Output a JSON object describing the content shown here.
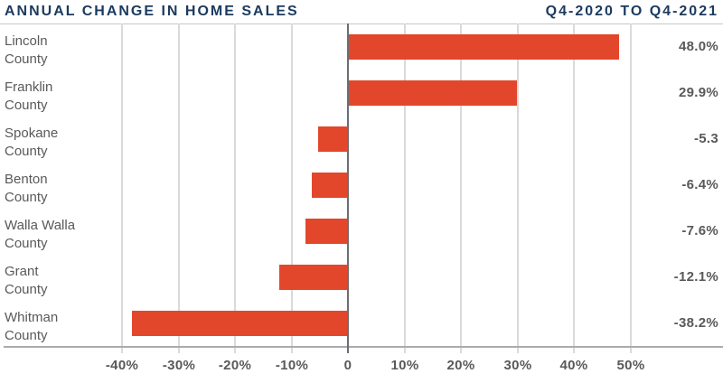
{
  "chart_data": {
    "type": "bar",
    "orientation": "horizontal",
    "title": "ANNUAL CHANGE IN HOME SALES",
    "period": "Q4-2020 TO Q4-2021",
    "categories": [
      "Lincoln County",
      "Franklin County",
      "Spokane County",
      "Benton County",
      "Walla Walla County",
      "Grant County",
      "Whitman County"
    ],
    "category_lines": [
      [
        "Lincoln",
        "County"
      ],
      [
        "Franklin",
        "County"
      ],
      [
        "Spokane",
        "County"
      ],
      [
        "Benton",
        "County"
      ],
      [
        "Walla Walla",
        "County"
      ],
      [
        "Grant",
        "County"
      ],
      [
        "Whitman",
        "County"
      ]
    ],
    "values": [
      48.0,
      29.9,
      -5.3,
      -6.4,
      -7.6,
      -12.1,
      -38.2
    ],
    "value_labels": [
      "48.0%",
      "29.9%",
      "-5.3",
      "-6.4%",
      "-7.6%",
      "-12.1%",
      "-38.2%"
    ],
    "x_ticks": [
      -40,
      -30,
      -20,
      -10,
      0,
      10,
      20,
      30,
      40,
      50
    ],
    "x_tick_labels": [
      "-40%",
      "-30%",
      "-20%",
      "-10%",
      "0",
      "10%",
      "20%",
      "30%",
      "40%",
      "50%"
    ],
    "xlim": [
      -45,
      55
    ],
    "grid": true,
    "legend": "none",
    "colors": {
      "bar": "#E3472B",
      "title_navy": "#1B3A5E",
      "text_gray": "#58595B",
      "gridline": "#D9DADB",
      "top_border": "#C6C8CA",
      "bottom_axis": "#A9ABAE",
      "zero_line": "#6D6E71",
      "background": "#FFFFFF"
    }
  }
}
